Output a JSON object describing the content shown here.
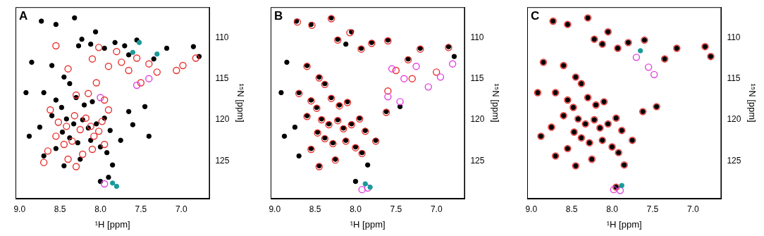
{
  "chart_data": [
    {
      "type": "scatter",
      "title": "A",
      "x_label": "¹H [ppm]",
      "y_label": "¹⁵N [ppm]",
      "xlim": [
        9.05,
        6.65
      ],
      "ylim": [
        129.6,
        106.3
      ],
      "xticks": [
        {
          "value": 9,
          "label": "9.0"
        },
        {
          "value": 8.5,
          "label": "8.5"
        },
        {
          "value": 8,
          "label": "8.0"
        },
        {
          "value": 7.5,
          "label": "7.5"
        },
        {
          "value": 7,
          "label": "7.0"
        }
      ],
      "yticks": [
        110,
        115,
        120,
        125
      ],
      "grid": false,
      "series": [
        {
          "color": "#000000",
          "marker": "circle",
          "x": [
            8.73,
            8.55,
            8.32,
            8.23,
            8.27,
            8.06,
            8.12,
            7.95,
            7.82,
            7.7,
            7.55,
            7.34,
            7.18,
            7.65,
            6.85,
            6.78,
            8.85,
            8.6,
            8.45,
            8.38,
            8.7,
            8.92,
            8.55,
            8.48,
            8.3,
            8.2,
            8.1,
            8.6,
            8.42,
            8.33,
            8.22,
            8.15,
            8.05,
            7.95,
            7.88,
            8.47,
            8.38,
            8.28,
            8.12,
            8.0,
            8.55,
            8.7,
            8.45,
            8.25,
            7.92,
            7.85,
            7.75,
            7.65,
            7.6,
            7.4,
            7.45,
            8.75,
            8.88,
            8.0,
            7.9
          ],
          "values": [
            108.0,
            108.4,
            107.6,
            110.2,
            111.0,
            109.3,
            110.8,
            111.3,
            110.6,
            111.0,
            110.3,
            112.6,
            111.3,
            112.1,
            111.1,
            112.3,
            113.0,
            113.4,
            114.8,
            115.6,
            116.7,
            116.7,
            117.6,
            118.5,
            117.3,
            118.2,
            117.8,
            119.5,
            119.9,
            120.5,
            120.0,
            121.0,
            120.5,
            119.8,
            121.3,
            121.5,
            122.2,
            122.8,
            122.5,
            123.3,
            123.5,
            124.4,
            125.6,
            124.8,
            124.0,
            125.5,
            122.5,
            119.0,
            120.6,
            122.0,
            118.4,
            120.9,
            122.0,
            127.5,
            127.0
          ]
        },
        {
          "color": "#e8322f",
          "marker": "ring",
          "x": [
            8.62,
            8.52,
            8.42,
            8.32,
            8.25,
            8.18,
            8.12,
            8.08,
            8.02,
            7.98,
            7.9,
            8.35,
            8.45,
            8.55,
            8.65,
            8.4,
            8.3,
            8.22,
            8.1,
            7.95,
            8.15,
            7.95,
            8.05,
            8.3,
            8.7,
            8.1,
            8.02,
            7.9,
            7.8,
            7.74,
            7.65,
            7.4,
            7.3,
            7.5,
            7.06,
            6.98,
            6.82,
            7.55,
            8.55,
            8.4
          ],
          "values": [
            118.8,
            120.3,
            120.8,
            119.5,
            121.2,
            119.8,
            120.8,
            122.0,
            121.4,
            120.2,
            118.8,
            122.6,
            123.0,
            122.0,
            123.8,
            124.8,
            125.7,
            124.2,
            123.6,
            123.0,
            116.8,
            117.6,
            115.5,
            117.0,
            125.2,
            112.6,
            111.2,
            113.5,
            111.7,
            113.0,
            114.0,
            113.2,
            114.2,
            115.5,
            114.0,
            113.4,
            112.5,
            112.5,
            111.0,
            113.8
          ]
        },
        {
          "color": "#e040e0",
          "marker": "ring",
          "x": [
            7.55,
            7.4,
            8.0,
            7.95
          ],
          "values": [
            115.8,
            115.0,
            117.3,
            127.8
          ]
        },
        {
          "color": "#1a9a9a",
          "marker": "circle",
          "x": [
            7.6,
            7.52,
            7.85,
            7.8,
            7.3
          ],
          "values": [
            111.8,
            110.6,
            127.7,
            128.1,
            112.0
          ]
        }
      ]
    },
    {
      "type": "scatter",
      "title": "B",
      "x_label": "¹H [ppm]",
      "y_label": "¹⁵N [ppm]",
      "xlim": [
        9.05,
        6.65
      ],
      "ylim": [
        129.6,
        106.3
      ],
      "xticks": [
        {
          "value": 9,
          "label": "9.0"
        },
        {
          "value": 8.5,
          "label": "8.5"
        },
        {
          "value": 8,
          "label": "8.0"
        },
        {
          "value": 7.5,
          "label": "7.5"
        },
        {
          "value": 7,
          "label": "7.0"
        }
      ],
      "yticks": [
        110,
        115,
        120,
        125
      ],
      "grid": false,
      "series": [
        {
          "color": "#000000",
          "marker": "circle",
          "x": [
            8.73,
            8.55,
            8.3,
            8.22,
            8.05,
            8.12,
            7.93,
            7.8,
            7.6,
            7.35,
            7.2,
            6.85,
            6.78,
            8.85,
            8.6,
            8.45,
            8.38,
            8.7,
            8.92,
            8.55,
            8.48,
            8.3,
            8.2,
            8.1,
            8.6,
            8.42,
            8.33,
            8.22,
            8.15,
            8.05,
            7.95,
            7.88,
            8.47,
            8.38,
            8.28,
            8.12,
            8.0,
            8.55,
            8.7,
            8.45,
            8.25,
            7.92,
            7.85,
            7.75,
            7.62,
            7.45,
            8.75,
            8.88,
            8.0
          ],
          "values": [
            108.0,
            108.4,
            107.6,
            110.2,
            109.3,
            110.8,
            111.3,
            110.6,
            110.3,
            112.6,
            111.3,
            111.1,
            112.3,
            113.0,
            113.4,
            114.8,
            115.6,
            116.7,
            116.7,
            117.6,
            118.5,
            117.3,
            118.2,
            117.8,
            119.5,
            119.9,
            120.5,
            120.0,
            121.0,
            120.5,
            119.8,
            121.3,
            121.5,
            122.2,
            122.8,
            122.5,
            123.3,
            123.5,
            124.4,
            125.6,
            124.8,
            124.0,
            125.5,
            122.5,
            119.0,
            118.4,
            120.9,
            122.0,
            127.5
          ]
        },
        {
          "color": "#e8322f",
          "marker": "ring",
          "x": [
            8.72,
            8.54,
            8.3,
            8.22,
            8.07,
            7.93,
            7.8,
            7.6,
            7.35,
            7.2,
            6.85,
            8.6,
            8.45,
            8.38,
            8.7,
            8.55,
            8.48,
            8.3,
            8.2,
            8.1,
            8.6,
            8.42,
            8.33,
            8.22,
            8.15,
            8.05,
            7.95,
            7.88,
            8.47,
            8.38,
            8.28,
            8.12,
            8.0,
            8.55,
            8.45,
            8.25,
            7.92,
            7.75,
            7.62,
            7.5,
            7.3,
            7.0,
            7.6
          ],
          "values": [
            108.1,
            108.5,
            107.7,
            110.3,
            109.4,
            111.4,
            110.7,
            110.4,
            112.7,
            111.4,
            111.2,
            113.5,
            114.9,
            115.7,
            116.8,
            117.7,
            118.6,
            117.4,
            118.3,
            117.9,
            119.6,
            120.0,
            120.6,
            120.1,
            121.1,
            120.6,
            119.9,
            121.4,
            121.6,
            122.3,
            122.9,
            122.6,
            123.4,
            123.6,
            125.7,
            124.9,
            124.1,
            122.6,
            119.1,
            114.0,
            115.0,
            114.2,
            116.5
          ]
        },
        {
          "color": "#e040e0",
          "marker": "ring",
          "x": [
            7.55,
            7.4,
            7.25,
            7.1,
            6.95,
            6.8,
            7.6,
            7.45,
            7.92,
            7.85
          ],
          "values": [
            113.8,
            115.0,
            113.5,
            116.0,
            114.8,
            113.2,
            117.2,
            117.8,
            128.5,
            128.3
          ]
        },
        {
          "color": "#1a9a9a",
          "marker": "circle",
          "x": [
            7.88,
            7.82
          ],
          "values": [
            127.8,
            128.2
          ]
        }
      ]
    },
    {
      "type": "scatter",
      "title": "C",
      "x_label": "¹H [ppm]",
      "y_label": "¹⁵N [ppm]",
      "xlim": [
        9.05,
        6.65
      ],
      "ylim": [
        129.6,
        106.3
      ],
      "xticks": [
        {
          "value": 9,
          "label": "9.0"
        },
        {
          "value": 8.5,
          "label": "8.5"
        },
        {
          "value": 8,
          "label": "8.0"
        },
        {
          "value": 7.5,
          "label": "7.5"
        },
        {
          "value": 7,
          "label": "7.0"
        }
      ],
      "yticks": [
        110,
        115,
        120,
        125
      ],
      "grid": false,
      "series": [
        {
          "color": "#000000",
          "marker": "circle",
          "x": [
            8.73,
            8.55,
            8.3,
            8.22,
            8.05,
            8.12,
            7.93,
            7.8,
            7.6,
            7.35,
            7.2,
            6.85,
            6.78,
            8.85,
            8.6,
            8.45,
            8.38,
            8.7,
            8.92,
            8.55,
            8.48,
            8.3,
            8.2,
            8.1,
            8.6,
            8.42,
            8.33,
            8.22,
            8.15,
            8.05,
            7.95,
            7.88,
            8.47,
            8.38,
            8.28,
            8.12,
            8.0,
            8.55,
            8.7,
            8.45,
            8.25,
            7.92,
            7.85,
            7.75,
            7.62,
            7.45,
            8.75,
            8.88,
            7.95
          ],
          "values": [
            108.0,
            108.4,
            107.6,
            110.2,
            109.3,
            110.8,
            111.3,
            110.6,
            110.3,
            112.6,
            111.3,
            111.1,
            112.3,
            113.0,
            113.4,
            114.8,
            115.6,
            116.7,
            116.7,
            117.6,
            118.5,
            117.3,
            118.2,
            117.8,
            119.5,
            119.9,
            120.5,
            120.0,
            121.0,
            120.5,
            119.8,
            121.3,
            121.5,
            122.2,
            122.8,
            122.5,
            123.3,
            123.5,
            124.4,
            125.6,
            124.8,
            124.0,
            125.5,
            122.5,
            119.0,
            118.4,
            120.9,
            122.0,
            128.2
          ]
        },
        {
          "color": "#e8322f",
          "marker": "ring",
          "x": [
            8.73,
            8.55,
            8.3,
            8.22,
            8.05,
            8.12,
            7.93,
            7.8,
            7.6,
            7.35,
            7.2,
            6.85,
            6.78,
            8.85,
            8.6,
            8.45,
            8.38,
            8.7,
            8.92,
            8.55,
            8.48,
            8.3,
            8.2,
            8.1,
            8.6,
            8.42,
            8.33,
            8.22,
            8.15,
            8.05,
            7.95,
            7.88,
            8.47,
            8.38,
            8.28,
            8.12,
            8.0,
            8.55,
            8.7,
            8.45,
            8.25,
            7.92,
            7.85,
            7.75,
            7.62,
            7.45,
            8.75,
            8.88,
            7.95
          ],
          "values": [
            108.0,
            108.4,
            107.6,
            110.2,
            109.3,
            110.8,
            111.3,
            110.6,
            110.3,
            112.6,
            111.3,
            111.1,
            112.3,
            113.0,
            113.4,
            114.8,
            115.6,
            116.7,
            116.7,
            117.6,
            118.5,
            117.3,
            118.2,
            117.8,
            119.5,
            119.9,
            120.5,
            120.0,
            121.0,
            120.5,
            119.8,
            121.3,
            121.5,
            122.2,
            122.8,
            122.5,
            123.3,
            123.5,
            124.4,
            125.6,
            124.8,
            124.0,
            125.5,
            122.5,
            119.0,
            118.4,
            120.9,
            122.0,
            128.2
          ]
        },
        {
          "color": "#e040e0",
          "marker": "ring",
          "x": [
            7.55,
            7.48,
            7.7,
            7.98,
            7.9
          ],
          "values": [
            113.6,
            114.5,
            112.4,
            128.5,
            128.6
          ]
        },
        {
          "color": "#1a9a9a",
          "marker": "circle",
          "x": [
            7.88,
            7.65
          ],
          "values": [
            128.0,
            111.6
          ]
        }
      ]
    }
  ]
}
